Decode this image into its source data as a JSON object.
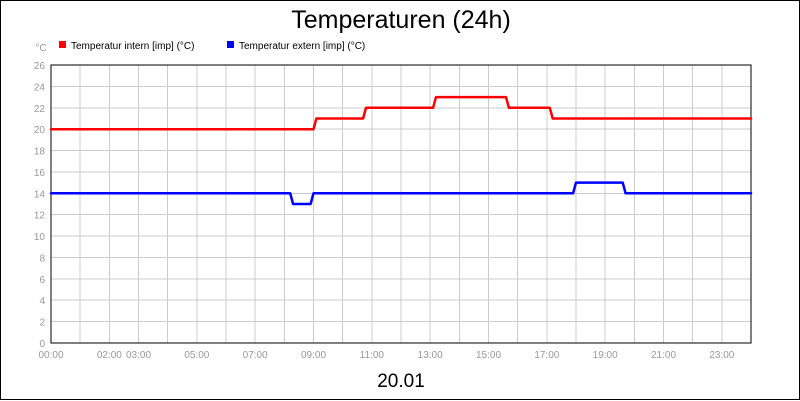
{
  "chart_data": {
    "type": "line",
    "title": "Temperaturen (24h)",
    "footer": "20.01",
    "y_unit": "°C",
    "ylim": [
      0,
      26
    ],
    "y_ticks": [
      0,
      2,
      4,
      6,
      8,
      10,
      12,
      14,
      16,
      18,
      20,
      22,
      24,
      26
    ],
    "xlim": [
      "00:00",
      "24:00"
    ],
    "x_ticks": [
      "00:00",
      "02:00",
      "03:00",
      "05:00",
      "07:00",
      "09:00",
      "11:00",
      "13:00",
      "15:00",
      "17:00",
      "19:00",
      "21:00",
      "23:00"
    ],
    "grid": true,
    "legend_position": "top-left",
    "series": [
      {
        "name": "Temperatur intern [imp] (°C)",
        "color": "#ff0000",
        "points": [
          [
            "00:00",
            20
          ],
          [
            "09:00",
            20
          ],
          [
            "09:06",
            21
          ],
          [
            "10:42",
            21
          ],
          [
            "10:48",
            22
          ],
          [
            "13:06",
            22
          ],
          [
            "13:12",
            23
          ],
          [
            "15:36",
            23
          ],
          [
            "15:42",
            22
          ],
          [
            "17:06",
            22
          ],
          [
            "17:12",
            21
          ],
          [
            "24:00",
            21
          ]
        ]
      },
      {
        "name": "Temperatur extern [imp] (°C)",
        "color": "#0000ff",
        "points": [
          [
            "00:00",
            14
          ],
          [
            "08:12",
            14
          ],
          [
            "08:18",
            13
          ],
          [
            "08:54",
            13
          ],
          [
            "09:00",
            14
          ],
          [
            "17:54",
            14
          ],
          [
            "18:00",
            15
          ],
          [
            "19:36",
            15
          ],
          [
            "19:42",
            14
          ],
          [
            "24:00",
            14
          ]
        ]
      }
    ]
  }
}
